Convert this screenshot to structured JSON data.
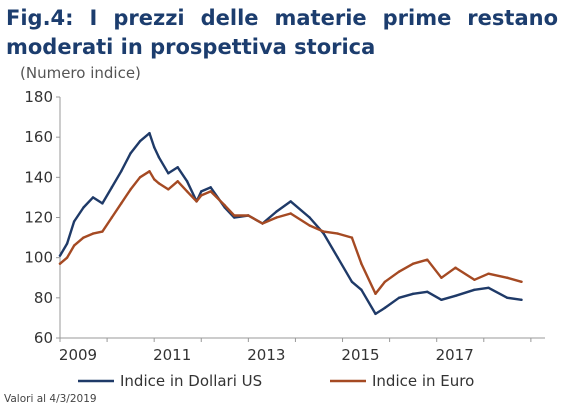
{
  "header": {
    "title": "Fig.4: I prezzi delle materie prime restano moderati in prospettiva storica"
  },
  "chart_data": {
    "type": "line",
    "unit_label": "(Numero indice)",
    "ylim": [
      60,
      180
    ],
    "yticks": [
      60,
      80,
      100,
      120,
      140,
      160,
      180
    ],
    "xlim": [
      2009.0,
      2019.3
    ],
    "xticks": [
      2009,
      2011,
      2013,
      2015,
      2017
    ],
    "grid": false,
    "legend_position": "bottom",
    "series": [
      {
        "name": "Indice in Dollari US",
        "color": "#1f3a68",
        "x": [
          2009.0,
          2009.15,
          2009.3,
          2009.5,
          2009.7,
          2009.9,
          2010.1,
          2010.3,
          2010.5,
          2010.7,
          2010.9,
          2011.0,
          2011.1,
          2011.3,
          2011.5,
          2011.7,
          2011.9,
          2012.0,
          2012.2,
          2012.5,
          2012.7,
          2013.0,
          2013.3,
          2013.6,
          2013.9,
          2014.3,
          2014.6,
          2014.9,
          2015.2,
          2015.4,
          2015.7,
          2015.9,
          2016.2,
          2016.5,
          2016.8,
          2017.1,
          2017.4,
          2017.8,
          2018.1,
          2018.5,
          2018.8
        ],
        "y": [
          101,
          107,
          118,
          125,
          130,
          127,
          135,
          143,
          152,
          158,
          162,
          155,
          150,
          142,
          145,
          138,
          128,
          133,
          135,
          125,
          120,
          121,
          117,
          123,
          128,
          120,
          112,
          100,
          88,
          84,
          72,
          75,
          80,
          82,
          83,
          79,
          81,
          84,
          85,
          80,
          79
        ]
      },
      {
        "name": "Indice in Euro",
        "color": "#a54a23",
        "x": [
          2009.0,
          2009.15,
          2009.3,
          2009.5,
          2009.7,
          2009.9,
          2010.1,
          2010.3,
          2010.5,
          2010.7,
          2010.9,
          2011.0,
          2011.1,
          2011.3,
          2011.5,
          2011.7,
          2011.9,
          2012.0,
          2012.2,
          2012.5,
          2012.7,
          2013.0,
          2013.3,
          2013.6,
          2013.9,
          2014.3,
          2014.6,
          2014.9,
          2015.2,
          2015.4,
          2015.7,
          2015.9,
          2016.2,
          2016.5,
          2016.8,
          2017.1,
          2017.4,
          2017.8,
          2018.1,
          2018.5,
          2018.8
        ],
        "y": [
          97,
          100,
          106,
          110,
          112,
          113,
          120,
          127,
          134,
          140,
          143,
          139,
          137,
          134,
          138,
          133,
          128,
          131,
          133,
          126,
          121,
          121,
          117,
          120,
          122,
          116,
          113,
          112,
          110,
          97,
          82,
          88,
          93,
          97,
          99,
          90,
          95,
          89,
          92,
          90,
          88
        ]
      }
    ]
  },
  "footnote": "Valori al 4/3/2019"
}
